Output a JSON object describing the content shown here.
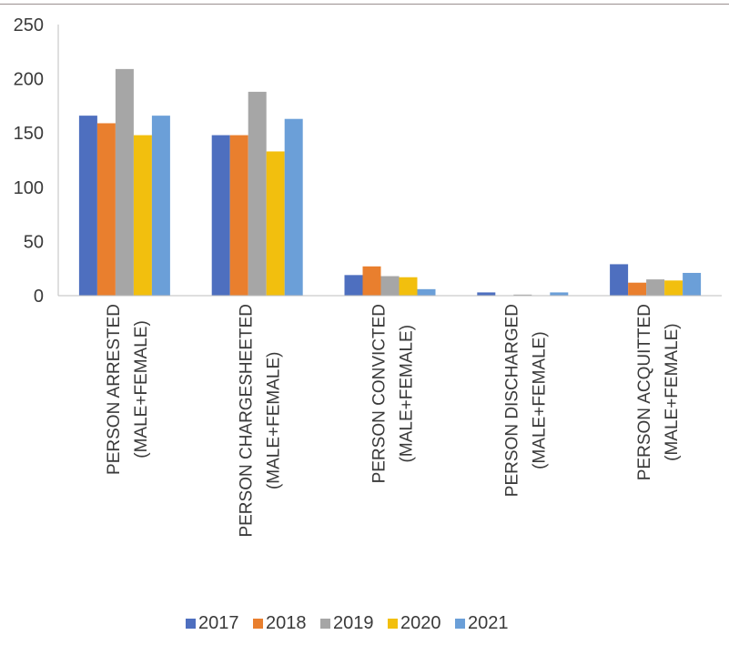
{
  "chart_data": {
    "type": "bar",
    "categories": [
      [
        "PERSON ARRESTED",
        "(MALE+FEMALE)"
      ],
      [
        "PERSON CHARGESHEETED",
        "(MALE+FEMALE)"
      ],
      [
        "PERSON CONVICTED",
        "(MALE+FEMALE)"
      ],
      [
        "PERSON DISCHARGED",
        "(MALE+FEMALE)"
      ],
      [
        "PERSON ACQUITTED",
        "(MALE+FEMALE)"
      ]
    ],
    "series": [
      {
        "name": "2017",
        "color": "#4e6fbf",
        "values": [
          166,
          148,
          19,
          3,
          29
        ]
      },
      {
        "name": "2018",
        "color": "#e97f2e",
        "values": [
          159,
          148,
          27,
          0,
          12
        ]
      },
      {
        "name": "2019",
        "color": "#a6a6a6",
        "values": [
          209,
          188,
          18,
          1,
          15
        ]
      },
      {
        "name": "2020",
        "color": "#f2bf0e",
        "values": [
          148,
          133,
          17,
          0,
          14
        ]
      },
      {
        "name": "2021",
        "color": "#6b9fd8",
        "values": [
          166,
          163,
          6,
          3,
          21
        ]
      }
    ],
    "ylim": [
      0,
      250
    ],
    "yticks": [
      0,
      50,
      100,
      150,
      200,
      250
    ],
    "legend_position": "bottom",
    "grid": false
  }
}
